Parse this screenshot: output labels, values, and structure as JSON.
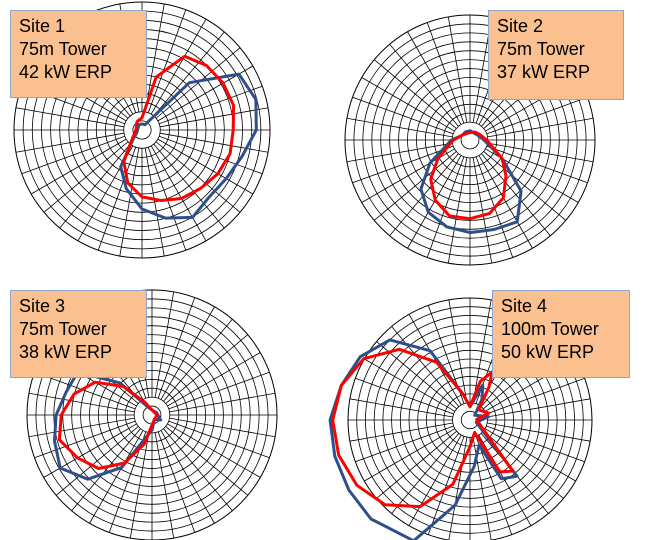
{
  "colors": {
    "grid": "#000000",
    "series_blue": "#2e4f8a",
    "series_red": "#ff0000",
    "label_fill": "#fac090",
    "label_border": "#8ea6cf"
  },
  "sites": [
    {
      "lines": [
        "Site 1",
        "75m Tower",
        "42 kW ERP"
      ],
      "blue": [
        [
          0,
          0.05
        ],
        [
          30,
          0.05
        ],
        [
          45,
          0.55
        ],
        [
          60,
          0.92
        ],
        [
          75,
          0.97
        ],
        [
          90,
          0.94
        ],
        [
          105,
          0.85
        ],
        [
          120,
          0.8
        ],
        [
          135,
          0.78
        ],
        [
          150,
          0.83
        ],
        [
          165,
          0.75
        ],
        [
          180,
          0.65
        ],
        [
          195,
          0.5
        ],
        [
          210,
          0.35
        ],
        [
          225,
          0.1
        ],
        [
          240,
          0.05
        ],
        [
          330,
          0.05
        ]
      ],
      "red": [
        [
          0,
          0.1
        ],
        [
          15,
          0.45
        ],
        [
          30,
          0.7
        ],
        [
          45,
          0.75
        ],
        [
          60,
          0.77
        ],
        [
          75,
          0.78
        ],
        [
          90,
          0.75
        ],
        [
          105,
          0.75
        ],
        [
          120,
          0.72
        ],
        [
          135,
          0.68
        ],
        [
          150,
          0.65
        ],
        [
          165,
          0.6
        ],
        [
          180,
          0.55
        ],
        [
          195,
          0.45
        ],
        [
          210,
          0.3
        ],
        [
          225,
          0.12
        ],
        [
          270,
          0.05
        ],
        [
          330,
          0.08
        ]
      ]
    },
    {
      "lines": [
        "Site 2",
        "75m Tower",
        "37 kW ERP"
      ],
      "blue": [
        [
          0,
          0.1
        ],
        [
          60,
          0.1
        ],
        [
          90,
          0.15
        ],
        [
          120,
          0.4
        ],
        [
          135,
          0.78
        ],
        [
          150,
          1.02
        ],
        [
          165,
          1.0
        ],
        [
          180,
          1.0
        ],
        [
          195,
          0.97
        ],
        [
          210,
          0.9
        ],
        [
          225,
          0.75
        ],
        [
          240,
          0.5
        ],
        [
          270,
          0.2
        ],
        [
          300,
          0.1
        ],
        [
          330,
          0.1
        ]
      ],
      "red": [
        [
          0,
          0.08
        ],
        [
          30,
          0.1
        ],
        [
          60,
          0.12
        ],
        [
          90,
          0.18
        ],
        [
          120,
          0.4
        ],
        [
          135,
          0.55
        ],
        [
          150,
          0.72
        ],
        [
          165,
          0.82
        ],
        [
          180,
          0.85
        ],
        [
          195,
          0.85
        ],
        [
          210,
          0.75
        ],
        [
          225,
          0.6
        ],
        [
          240,
          0.4
        ],
        [
          270,
          0.18
        ],
        [
          300,
          0.1
        ],
        [
          330,
          0.08
        ]
      ]
    },
    {
      "lines": [
        "Site 3",
        "75m Tower",
        "38 kW ERP"
      ],
      "blue": [
        [
          0,
          0.05
        ],
        [
          60,
          0.05
        ],
        [
          120,
          0.1
        ],
        [
          150,
          0.05
        ],
        [
          180,
          0.15
        ],
        [
          210,
          0.6
        ],
        [
          225,
          0.9
        ],
        [
          240,
          1.05
        ],
        [
          255,
          1.0
        ],
        [
          270,
          0.95
        ],
        [
          285,
          0.88
        ],
        [
          300,
          0.85
        ],
        [
          315,
          0.45
        ],
        [
          330,
          0.1
        ],
        [
          360,
          0.05
        ]
      ],
      "red": [
        [
          0,
          0.05
        ],
        [
          90,
          0.05
        ],
        [
          150,
          0.05
        ],
        [
          180,
          0.1
        ],
        [
          195,
          0.3
        ],
        [
          210,
          0.55
        ],
        [
          225,
          0.75
        ],
        [
          240,
          0.85
        ],
        [
          255,
          0.95
        ],
        [
          270,
          0.9
        ],
        [
          285,
          0.8
        ],
        [
          300,
          0.65
        ],
        [
          315,
          0.4
        ],
        [
          330,
          0.15
        ],
        [
          360,
          0.05
        ]
      ]
    },
    {
      "lines": [
        "Site 4",
        "100m Tower",
        "50 kW ERP"
      ],
      "blue": [
        [
          0,
          0.1
        ],
        [
          20,
          0.28
        ],
        [
          30,
          0.18
        ],
        [
          45,
          0.05
        ],
        [
          80,
          0.14
        ],
        [
          110,
          0.05
        ],
        [
          140,
          0.55
        ],
        [
          152,
          0.5
        ],
        [
          160,
          0.2
        ],
        [
          175,
          0.35
        ],
        [
          190,
          0.65
        ],
        [
          205,
          1.0
        ],
        [
          225,
          1.05
        ],
        [
          240,
          1.05
        ],
        [
          255,
          1.05
        ],
        [
          270,
          1.05
        ],
        [
          285,
          1.0
        ],
        [
          300,
          0.95
        ],
        [
          315,
          0.85
        ],
        [
          330,
          0.6
        ],
        [
          345,
          0.2
        ],
        [
          360,
          0.1
        ]
      ],
      "red": [
        [
          0,
          0.1
        ],
        [
          15,
          0.3
        ],
        [
          25,
          0.4
        ],
        [
          30,
          0.28
        ],
        [
          40,
          0.1
        ],
        [
          70,
          0.15
        ],
        [
          85,
          0.05
        ],
        [
          120,
          0.1
        ],
        [
          140,
          0.5
        ],
        [
          150,
          0.45
        ],
        [
          160,
          0.1
        ],
        [
          180,
          0.2
        ],
        [
          195,
          0.5
        ],
        [
          210,
          0.75
        ],
        [
          225,
          0.9
        ],
        [
          240,
          0.98
        ],
        [
          255,
          1.02
        ],
        [
          270,
          1.03
        ],
        [
          285,
          1.0
        ],
        [
          300,
          0.92
        ],
        [
          315,
          0.75
        ],
        [
          330,
          0.5
        ],
        [
          345,
          0.2
        ],
        [
          360,
          0.1
        ]
      ]
    }
  ]
}
